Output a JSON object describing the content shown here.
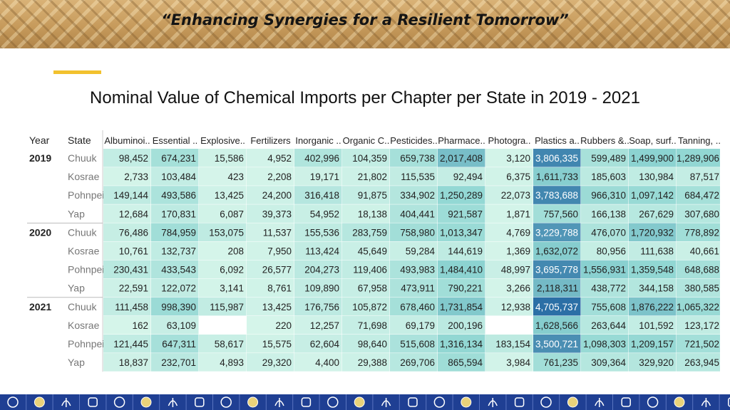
{
  "header": {
    "tagline": "“Enhancing Synergies for a Resilient Tomorrow”"
  },
  "slide": {
    "title": "Nominal Value of Chemical Imports per Chapter per State in 2019 - 2021"
  },
  "chart_data": {
    "type": "heatmap",
    "title": "Nominal Value of Chemical Imports per Chapter per State in 2019 - 2021",
    "row_headers": [
      "Year",
      "State"
    ],
    "columns": [
      "Albuminoi..",
      "Essential ..",
      "Explosive..",
      "Fertilizers",
      "Inorganic ..",
      "Organic C..",
      "Pesticides..",
      "Pharmace..",
      "Photogra..",
      "Plastics a..",
      "Rubbers &..",
      "Soap, surf..",
      "Tanning, .."
    ],
    "years": [
      "2019",
      "2020",
      "2021"
    ],
    "states": [
      "Chuuk",
      "Kosrae",
      "Pohnpei",
      "Yap"
    ],
    "values": [
      [
        98452,
        674231,
        15586,
        4952,
        402996,
        104359,
        659738,
        2017408,
        3120,
        3806335,
        599489,
        1499900,
        1289906
      ],
      [
        2733,
        103484,
        423,
        2208,
        19171,
        21802,
        115535,
        92494,
        6375,
        1611733,
        185603,
        130984,
        87517
      ],
      [
        149144,
        493586,
        13425,
        24200,
        316418,
        91875,
        334902,
        1250289,
        22073,
        3783688,
        966310,
        1097142,
        684472
      ],
      [
        12684,
        170831,
        6087,
        39373,
        54952,
        18138,
        404441,
        921587,
        1871,
        757560,
        166138,
        267629,
        307680
      ],
      [
        76486,
        784959,
        153075,
        11537,
        155536,
        283759,
        758980,
        1013347,
        4769,
        3229788,
        476070,
        1720932,
        778892
      ],
      [
        10761,
        132737,
        208,
        7950,
        113424,
        45649,
        59284,
        144619,
        1369,
        1632072,
        80956,
        111638,
        40661
      ],
      [
        230431,
        433543,
        6092,
        26577,
        204273,
        119406,
        493983,
        1484410,
        48997,
        3695778,
        1556931,
        1359548,
        648688
      ],
      [
        22591,
        122072,
        3141,
        8761,
        109890,
        67958,
        473911,
        790221,
        3266,
        2118311,
        438772,
        344158,
        380585
      ],
      [
        111458,
        998390,
        115987,
        13425,
        176756,
        105872,
        678460,
        1731854,
        12938,
        4705737,
        755608,
        1876222,
        1065322
      ],
      [
        162,
        63109,
        null,
        220,
        12257,
        71698,
        69179,
        200196,
        null,
        1628566,
        263644,
        101592,
        123172
      ],
      [
        121445,
        647311,
        58617,
        15575,
        62604,
        98640,
        515608,
        1316134,
        183154,
        3500721,
        1098303,
        1209157,
        721502
      ],
      [
        18837,
        232701,
        4893,
        29320,
        4400,
        29388,
        269706,
        865594,
        3984,
        761235,
        309364,
        329920,
        263945
      ]
    ],
    "colors": {
      "low": "#d6f5ea",
      "mid": "#8fd6d2",
      "high": "#2b6fa6",
      "missing": "#ffffff",
      "text_dark": "#222222",
      "text_light": "#ffffff",
      "state_text": "#777777"
    }
  },
  "footer": {
    "background": "#1f3f93",
    "icons": [
      "fish-icon",
      "emblem-icon",
      "leaf-icon",
      "seal-icon"
    ]
  }
}
